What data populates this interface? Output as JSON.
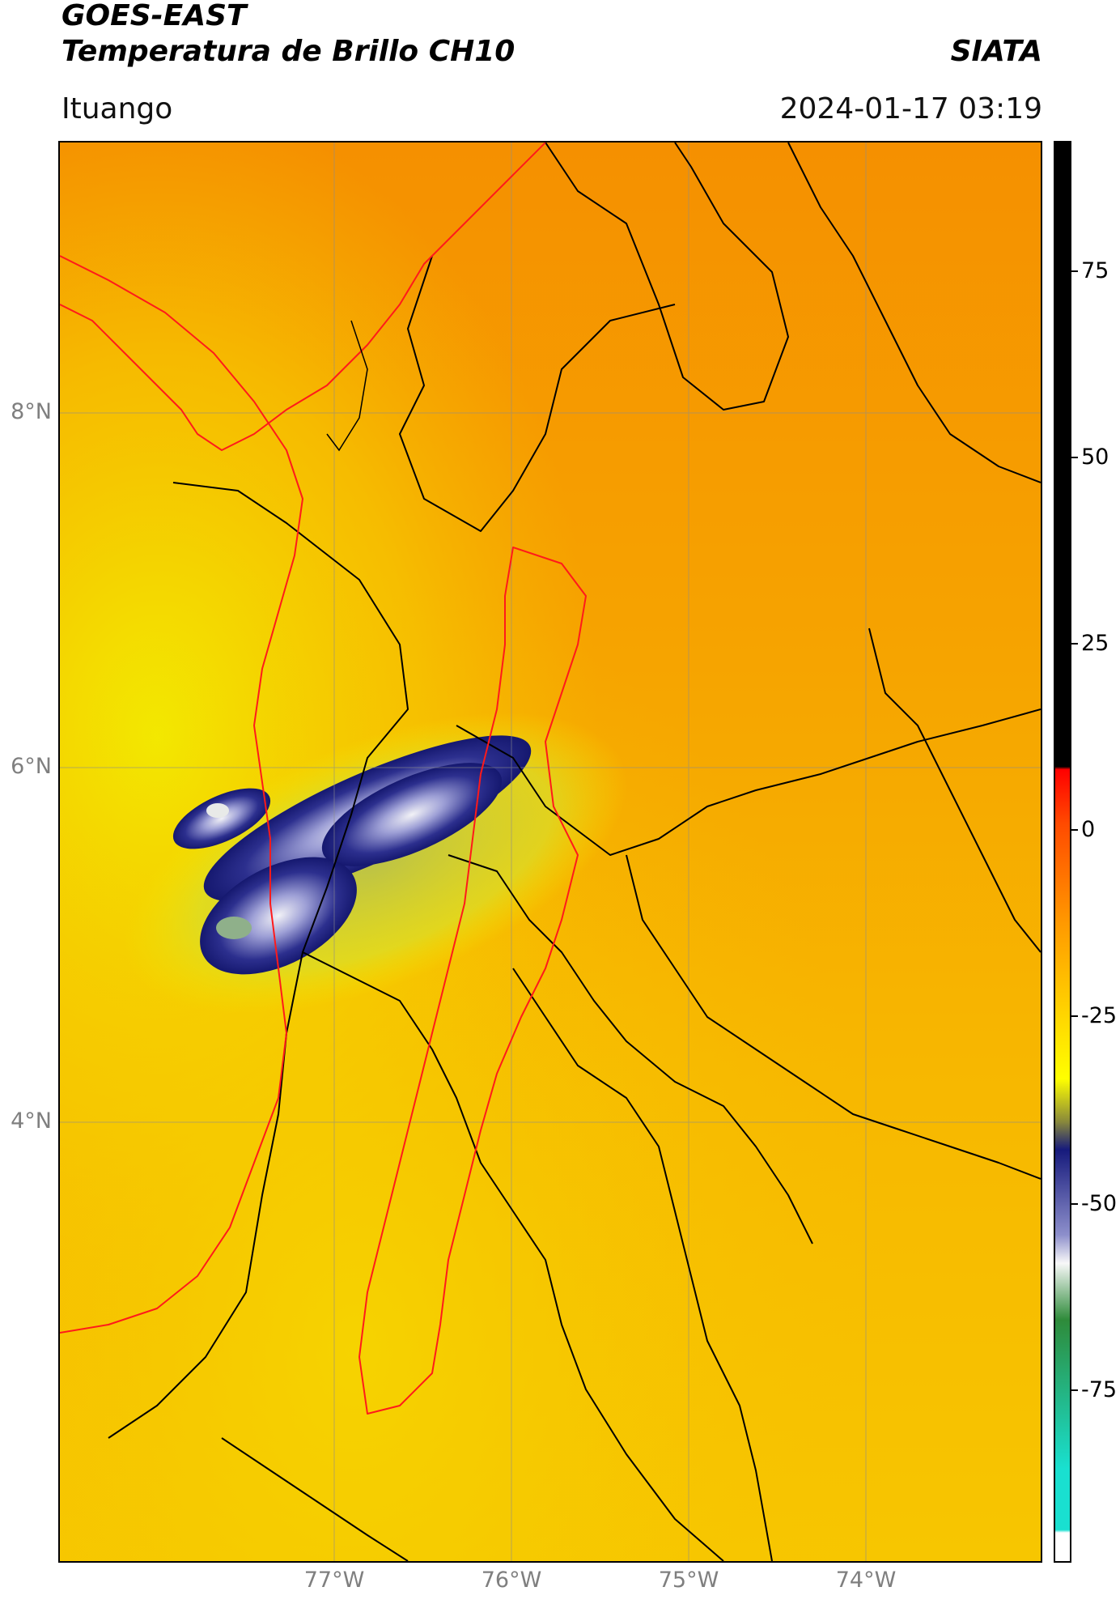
{
  "header": {
    "satellite": "GOES-EAST",
    "product": "Temperatura de Brillo CH10",
    "brand": "SIATA",
    "region": "Ituango",
    "timestamp": "2024-01-17 03:19"
  },
  "map": {
    "latitude_labels": [
      "8°N",
      "6°N",
      "4°N"
    ],
    "longitude_labels": [
      "77°W",
      "76°W",
      "75°W",
      "74°W"
    ],
    "colors": {
      "background_warm": "#f59a00",
      "background_mid": "#f7c000",
      "cloud_core": "#1c1f7a",
      "cloud_edge": "#bfc54a",
      "basin_outline": "#ff0000",
      "admin_border": "#000000",
      "grid": "#8c8c8c"
    }
  },
  "colorbar": {
    "ticks": [
      "75",
      "50",
      "25",
      "0",
      "-25",
      "-50",
      "-75"
    ],
    "colors": {
      "black_segment": "#000000",
      "red": "#ff0000",
      "orange": "#ff9900",
      "yellow": "#ffff00",
      "olive": "#8a8a3a",
      "navy": "#161a7c",
      "lavender": "#8d8fcb",
      "white": "#f8f8f8",
      "green": "#2e8b3a",
      "cyan": "#19e0d0"
    }
  }
}
